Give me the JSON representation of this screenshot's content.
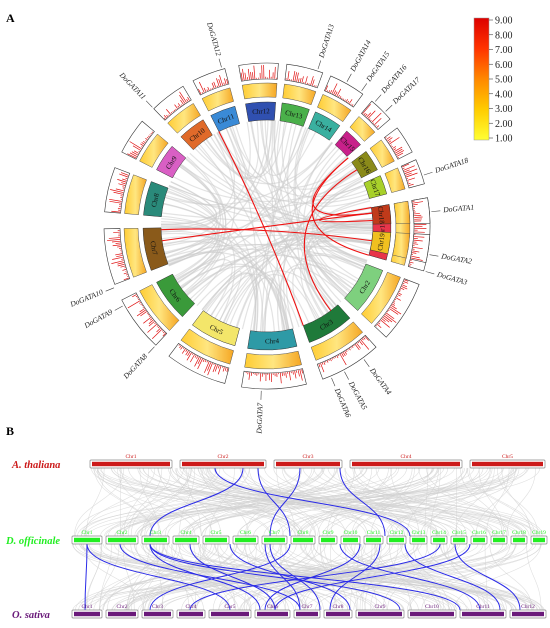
{
  "panel_a": {
    "label": "A",
    "chromosomes": [
      {
        "name": "Chr1",
        "color": "#e8354a",
        "start": 80,
        "end": 106
      },
      {
        "name": "Chr2",
        "color": "#7ed07e",
        "start": 111,
        "end": 133
      },
      {
        "name": "Chr3",
        "color": "#1f7a3a",
        "start": 138,
        "end": 160
      },
      {
        "name": "Chr4",
        "color": "#2e9aa6",
        "start": 166,
        "end": 189
      },
      {
        "name": "Chr5",
        "color": "#f3e66a",
        "start": 195,
        "end": 217
      },
      {
        "name": "Chr6",
        "color": "#3a9a3a",
        "start": 223,
        "end": 243
      },
      {
        "name": "Chr7",
        "color": "#8a5a1a",
        "start": 249,
        "end": 269
      },
      {
        "name": "Chr8",
        "color": "#2a8a7a",
        "start": 275,
        "end": 291
      },
      {
        "name": "Chr9",
        "color": "#d95fc4",
        "start": 297,
        "end": 310
      },
      {
        "name": "Chr10",
        "color": "#e06a2a",
        "start": 316,
        "end": 329
      },
      {
        "name": "Chr11",
        "color": "#3a8ad6",
        "start": 333,
        "end": 345
      },
      {
        "name": "Chr12",
        "color": "#3050b0",
        "start": 350,
        "end": 364
      },
      {
        "name": "Chr13",
        "color": "#4ab04a",
        "start": 367,
        "end": 380
      },
      {
        "name": "Chr14",
        "color": "#3ab0a0",
        "start": 383,
        "end": 396
      },
      {
        "name": "Chr15",
        "color": "#c8208a",
        "start": 400,
        "end": 409
      },
      {
        "name": "Chr16",
        "color": "#8a8a1a",
        "start": 413,
        "end": 423
      },
      {
        "name": "Chr17",
        "color": "#a8d02a",
        "start": 426,
        "end": 435
      },
      {
        "name": "Chr18",
        "color": "#c03a1a",
        "start": 440,
        "end": 449
      },
      {
        "name": "Chr19",
        "color": "#f0c020",
        "start": 453,
        "end": 463
      }
    ],
    "genes": [
      {
        "name": "DoGATA1",
        "angle": 85
      },
      {
        "name": "DoGATA2",
        "angle": 100
      },
      {
        "name": "DoGATA3",
        "angle": 106
      },
      {
        "name": "DoGATA4",
        "angle": 144
      },
      {
        "name": "DoGATA5",
        "angle": 152
      },
      {
        "name": "DoGATA6",
        "angle": 157
      },
      {
        "name": "DoGATA7",
        "angle": 182
      },
      {
        "name": "DoGATA8",
        "angle": 223
      },
      {
        "name": "DoGATA9",
        "angle": 241
      },
      {
        "name": "DoGATA10",
        "angle": 248
      },
      {
        "name": "DoGATA11",
        "angle": 316
      },
      {
        "name": "DoGATA12",
        "angle": 344
      },
      {
        "name": "DoGATA13",
        "angle": 378
      },
      {
        "name": "DoGATA14",
        "angle": 389
      },
      {
        "name": "DoGATA15",
        "angle": 395
      },
      {
        "name": "DoGATA16",
        "angle": 401
      },
      {
        "name": "DoGATA17",
        "angle": 406
      },
      {
        "name": "DoGATA18",
        "angle": 432
      }
    ],
    "red_links": [
      [
        83,
        410
      ],
      [
        106,
        410
      ],
      [
        87,
        440
      ],
      [
        262,
        443
      ],
      [
        268,
        98
      ],
      [
        333,
        160
      ],
      [
        418,
        143
      ]
    ],
    "legend": {
      "ticks": [
        "9.00",
        "8.00",
        "7.00",
        "6.00",
        "5.00",
        "4.00",
        "3.00",
        "2.00",
        "1.00"
      ],
      "colors": [
        "#ffff33",
        "#ffcc00",
        "#ff8800",
        "#ff3300",
        "#dd0000"
      ]
    }
  },
  "panel_b": {
    "label": "B",
    "rows": [
      {
        "species": "A. thaliana",
        "color": "#cc1a1a",
        "chromosomes": [
          {
            "name": "Chr1",
            "start": 90,
            "end": 172
          },
          {
            "name": "Chr2",
            "start": 180,
            "end": 266
          },
          {
            "name": "Chr3",
            "start": 274,
            "end": 342
          },
          {
            "name": "Chr4",
            "start": 350,
            "end": 462
          },
          {
            "name": "Chr5",
            "start": 470,
            "end": 545
          }
        ]
      },
      {
        "species": "D. officinale",
        "color": "#22ee22",
        "chromosomes": [
          {
            "name": "Chr1",
            "start": 72,
            "end": 102
          },
          {
            "name": "Chr2",
            "start": 106,
            "end": 138
          },
          {
            "name": "Chr3",
            "start": 142,
            "end": 169
          },
          {
            "name": "Chr4",
            "start": 173,
            "end": 199
          },
          {
            "name": "Chr5",
            "start": 203,
            "end": 229
          },
          {
            "name": "Chr6",
            "start": 233,
            "end": 258
          },
          {
            "name": "Chr7",
            "start": 262,
            "end": 287
          },
          {
            "name": "Chr8",
            "start": 291,
            "end": 315
          },
          {
            "name": "Chr9",
            "start": 319,
            "end": 337
          },
          {
            "name": "Chr10",
            "start": 341,
            "end": 360
          },
          {
            "name": "Chr11",
            "start": 364,
            "end": 383
          },
          {
            "name": "Chr12",
            "start": 387,
            "end": 406
          },
          {
            "name": "Chr13",
            "start": 410,
            "end": 427
          },
          {
            "name": "Chr14",
            "start": 431,
            "end": 447
          },
          {
            "name": "Chr15",
            "start": 451,
            "end": 467
          },
          {
            "name": "Chr16",
            "start": 471,
            "end": 487
          },
          {
            "name": "Chr17",
            "start": 491,
            "end": 507
          },
          {
            "name": "Chr18",
            "start": 511,
            "end": 527
          },
          {
            "name": "Chr19",
            "start": 531,
            "end": 547
          }
        ]
      },
      {
        "species": "O. sativa",
        "color": "#6a1a7a",
        "chromosomes": [
          {
            "name": "Chr1",
            "start": 72,
            "end": 102
          },
          {
            "name": "Chr2",
            "start": 106,
            "end": 138
          },
          {
            "name": "Chr3",
            "start": 142,
            "end": 173
          },
          {
            "name": "Chr4",
            "start": 177,
            "end": 205
          },
          {
            "name": "Chr5",
            "start": 209,
            "end": 251
          },
          {
            "name": "Chr6",
            "start": 255,
            "end": 290
          },
          {
            "name": "Chr7",
            "start": 294,
            "end": 320
          },
          {
            "name": "Chr8",
            "start": 324,
            "end": 352
          },
          {
            "name": "Chr9",
            "start": 356,
            "end": 404
          },
          {
            "name": "Chr10",
            "start": 408,
            "end": 456
          },
          {
            "name": "Chr11",
            "start": 460,
            "end": 506
          },
          {
            "name": "Chr12",
            "start": 510,
            "end": 546
          }
        ]
      }
    ],
    "blue_links_upper": [
      [
        243,
        150
      ],
      [
        215,
        410
      ],
      [
        258,
        290
      ],
      [
        300,
        270
      ],
      [
        340,
        385
      ]
    ],
    "blue_links_lower": [
      [
        87,
        85
      ],
      [
        87,
        230
      ],
      [
        120,
        300
      ],
      [
        150,
        260
      ],
      [
        150,
        460
      ],
      [
        190,
        275
      ],
      [
        230,
        350
      ],
      [
        265,
        300
      ],
      [
        270,
        320
      ],
      [
        290,
        150
      ],
      [
        340,
        480
      ],
      [
        360,
        265
      ],
      [
        380,
        330
      ],
      [
        405,
        500
      ],
      [
        440,
        190
      ],
      [
        455,
        520
      ],
      [
        470,
        275
      ],
      [
        150,
        400
      ]
    ]
  }
}
